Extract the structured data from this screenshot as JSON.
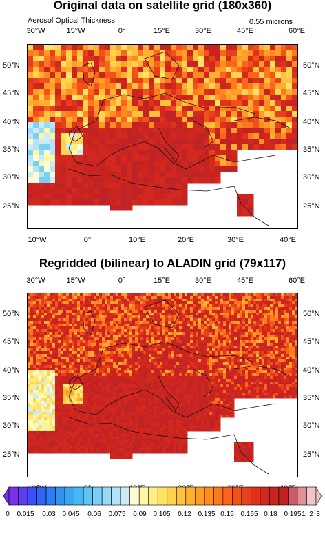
{
  "panels": [
    {
      "title": "Original data on satellite grid (180x360)",
      "left_caption": "Aerosol Optical Thickness",
      "right_caption": "0.55 microns",
      "top_lon_labels": [
        "30°W",
        "15°W",
        "0°",
        "15°E",
        "30°E",
        "45°E",
        "60°E"
      ],
      "bottom_lon_labels": [
        "10°W",
        "0°",
        "10°E",
        "20°E",
        "30°E",
        "40°E"
      ],
      "lat_labels": [
        "50°N",
        "45°N",
        "40°N",
        "35°N",
        "30°N",
        "25°N"
      ]
    },
    {
      "title": "Regridded (bilinear) to ALADIN grid (79x117)",
      "top_lon_labels": [
        "30°W",
        "15°W",
        "0°",
        "15°E",
        "30°E",
        "45°E",
        "60°E"
      ],
      "bottom_lon_labels": [
        "10°W",
        "0°",
        "10°E",
        "20°E",
        "30°E",
        "40°E"
      ],
      "lat_labels": [
        "50°N",
        "45°N",
        "40°N",
        "35°N",
        "30°N",
        "25°N"
      ]
    }
  ],
  "colorbar": {
    "labels": [
      "0",
      "0.015",
      "0.03",
      "0.045",
      "0.06",
      "0.075",
      "0.09",
      "0.105",
      "0.12",
      "0.135",
      "0.15",
      "0.165",
      "0.18",
      "0.195",
      "1",
      "2",
      "3"
    ],
    "colors": [
      "#7a2fe8",
      "#5a3ef0",
      "#3d4ef5",
      "#2f62f5",
      "#2c7cf2",
      "#3392ef",
      "#3aa6f0",
      "#45b8f2",
      "#5dc4f4",
      "#79d0f5",
      "#97dbf7",
      "#b4e4f8",
      "#cdebf7",
      "#fffbd0",
      "#fff6a6",
      "#ffee82",
      "#ffe266",
      "#ffd24f",
      "#ffc23e",
      "#ffb032",
      "#ff9d29",
      "#ff8b22",
      "#ff781d",
      "#fa641b",
      "#f2511a",
      "#e8401b",
      "#dd321c",
      "#d2281e",
      "#c92420",
      "#bf2326",
      "#d05a62",
      "#e08f95",
      "#f0c4c8"
    ]
  }
}
